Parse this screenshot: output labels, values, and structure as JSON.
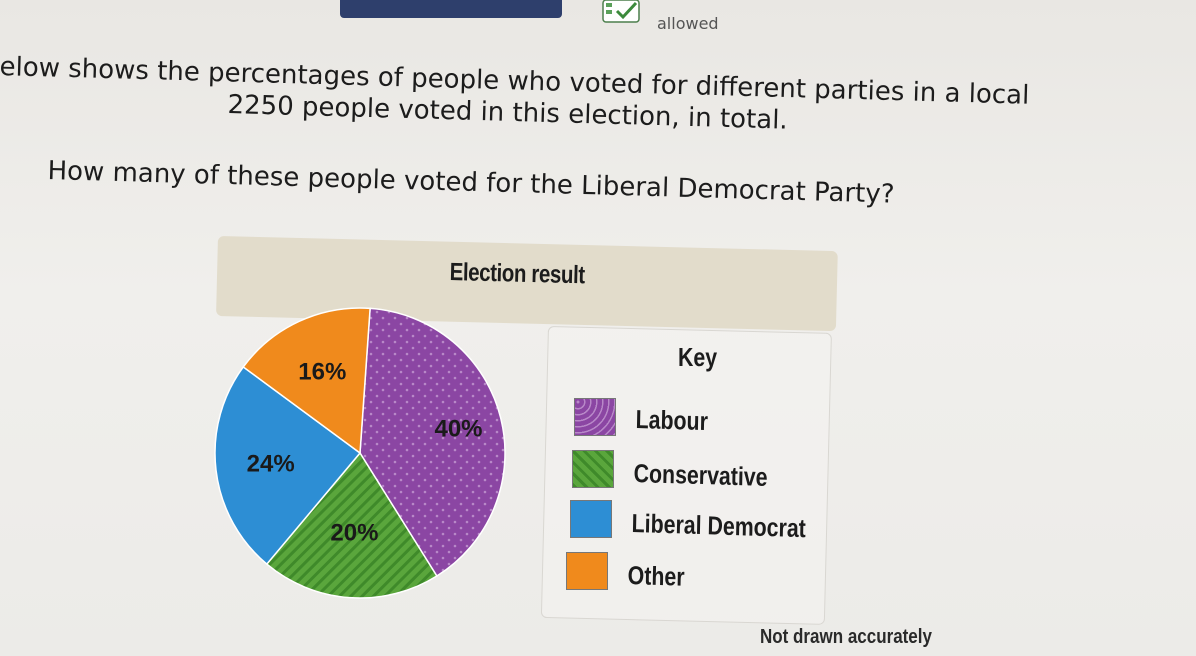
{
  "header": {
    "allowed_label": "allowed"
  },
  "question": {
    "line1": "elow shows the percentages of people who voted for different parties in a local",
    "line2": "2250 people voted in this election, in total.",
    "line3": "How many of these people voted for the Liberal Democrat Party?"
  },
  "chart_data": {
    "type": "pie",
    "title": "Election result",
    "categories": [
      "Labour",
      "Conservative",
      "Liberal Democrat",
      "Other"
    ],
    "values": [
      40,
      20,
      24,
      16
    ],
    "value_labels": [
      "40%",
      "20%",
      "24%",
      "16%"
    ],
    "colors": [
      "#8b46a3",
      "#5aa63c",
      "#2d8ed4",
      "#f08a1c"
    ],
    "legend_title": "Key",
    "legend_placement": "right",
    "footnote": "Not drawn accurately"
  }
}
